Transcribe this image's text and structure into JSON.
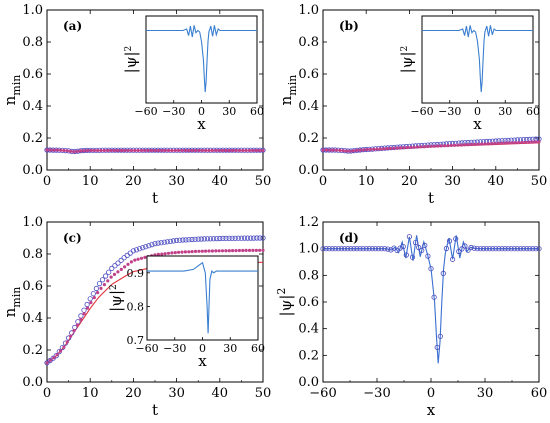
{
  "chart_data": [
    {
      "type": "line",
      "panel_label": "(a)",
      "xlabel": "t",
      "ylabel_main": "n",
      "ylabel_sub": "min",
      "xlim": [
        0,
        50
      ],
      "ylim": [
        0,
        1.0
      ],
      "xticks": [
        "0",
        "10",
        "20",
        "30",
        "40",
        "50"
      ],
      "yticks": [
        "0.0",
        "0.2",
        "0.4",
        "0.6",
        "0.8",
        "1.0"
      ],
      "series": [
        {
          "style": "line",
          "color": "#e0303a",
          "x": [
            0,
            3,
            5,
            6,
            7,
            8,
            10,
            15,
            20,
            25,
            30,
            35,
            40,
            45,
            50
          ],
          "y": [
            0.125,
            0.123,
            0.118,
            0.113,
            0.115,
            0.119,
            0.121,
            0.121,
            0.121,
            0.121,
            0.121,
            0.121,
            0.121,
            0.121,
            0.121
          ]
        },
        {
          "style": "circle",
          "color": "#4a4ac0",
          "x": [
            0,
            3,
            5,
            6,
            7,
            8,
            10,
            15,
            20,
            25,
            30,
            35,
            40,
            45,
            50
          ],
          "y": [
            0.125,
            0.124,
            0.12,
            0.115,
            0.117,
            0.121,
            0.123,
            0.124,
            0.124,
            0.124,
            0.124,
            0.124,
            0.124,
            0.124,
            0.124
          ]
        },
        {
          "style": "dot",
          "color": "#c0408a",
          "x": [
            0,
            3,
            5,
            6,
            7,
            8,
            10,
            15,
            20,
            25,
            30,
            35,
            40,
            45,
            50
          ],
          "y": [
            0.125,
            0.124,
            0.119,
            0.114,
            0.116,
            0.12,
            0.122,
            0.122,
            0.122,
            0.122,
            0.122,
            0.122,
            0.122,
            0.122,
            0.122
          ]
        }
      ],
      "inset": {
        "xlabel": "x",
        "ylabel": "|ψ|",
        "ylabel_sup": "2",
        "xlim": [
          -60,
          60
        ],
        "ylim": [
          0.0,
          1.2
        ],
        "xticks": [
          "−60",
          "−30",
          "0",
          "30",
          "60"
        ],
        "x": [
          -60,
          -20,
          -16,
          -14,
          -12,
          -10,
          -8,
          -6,
          -4,
          -2,
          0,
          2,
          3,
          4,
          5,
          6,
          7,
          8,
          10,
          12,
          14,
          16,
          18,
          20,
          24,
          60
        ],
        "y": [
          1.0,
          1.0,
          1.02,
          0.93,
          1.06,
          0.91,
          1.07,
          0.97,
          1.0,
          0.98,
          0.85,
          0.6,
          0.35,
          0.15,
          0.3,
          0.6,
          0.85,
          0.98,
          1.06,
          0.92,
          1.07,
          0.94,
          1.02,
          1.0,
          1.0,
          1.0
        ]
      }
    },
    {
      "type": "line",
      "panel_label": "(b)",
      "xlabel": "t",
      "ylabel_main": "n",
      "ylabel_sub": "min",
      "xlim": [
        0,
        50
      ],
      "ylim": [
        0,
        1.0
      ],
      "xticks": [
        "0",
        "10",
        "20",
        "30",
        "40",
        "50"
      ],
      "yticks": [
        "0.0",
        "0.2",
        "0.4",
        "0.6",
        "0.8",
        "1.0"
      ],
      "series": [
        {
          "style": "line",
          "color": "#e0303a",
          "x": [
            0,
            3,
            5,
            6,
            7,
            8,
            10,
            15,
            20,
            25,
            30,
            35,
            40,
            45,
            50
          ],
          "y": [
            0.125,
            0.124,
            0.12,
            0.116,
            0.118,
            0.122,
            0.126,
            0.132,
            0.138,
            0.144,
            0.15,
            0.155,
            0.16,
            0.165,
            0.17
          ]
        },
        {
          "style": "circle",
          "color": "#4a4ac0",
          "x": [
            0,
            3,
            5,
            6,
            7,
            8,
            10,
            15,
            20,
            25,
            30,
            35,
            40,
            45,
            50
          ],
          "y": [
            0.125,
            0.125,
            0.121,
            0.118,
            0.12,
            0.124,
            0.128,
            0.138,
            0.148,
            0.157,
            0.166,
            0.174,
            0.181,
            0.188,
            0.194
          ]
        },
        {
          "style": "dot",
          "color": "#c0408a",
          "x": [
            0,
            3,
            5,
            6,
            7,
            8,
            10,
            15,
            20,
            25,
            30,
            35,
            40,
            45,
            50
          ],
          "y": [
            0.125,
            0.124,
            0.12,
            0.117,
            0.119,
            0.123,
            0.127,
            0.134,
            0.141,
            0.148,
            0.154,
            0.16,
            0.166,
            0.171,
            0.176
          ]
        }
      ],
      "inset": {
        "xlabel": "x",
        "ylabel": "|ψ|",
        "ylabel_sup": "2",
        "xlim": [
          -60,
          60
        ],
        "ylim": [
          0.0,
          1.2
        ],
        "xticks": [
          "−60",
          "−30",
          "0",
          "30",
          "60"
        ],
        "x": [
          -60,
          -20,
          -16,
          -14,
          -12,
          -10,
          -8,
          -6,
          -4,
          -2,
          0,
          2,
          3,
          4,
          5,
          6,
          7,
          8,
          10,
          12,
          14,
          16,
          18,
          20,
          24,
          60
        ],
        "y": [
          1.0,
          1.0,
          1.02,
          0.93,
          1.06,
          0.91,
          1.07,
          0.97,
          1.0,
          0.98,
          0.85,
          0.6,
          0.35,
          0.15,
          0.3,
          0.6,
          0.85,
          0.98,
          1.06,
          0.92,
          1.07,
          0.94,
          1.02,
          1.0,
          1.0,
          1.0
        ]
      }
    },
    {
      "type": "line",
      "panel_label": "(c)",
      "xlabel": "t",
      "ylabel_main": "n",
      "ylabel_sub": "min",
      "xlim": [
        0,
        50
      ],
      "ylim": [
        0,
        1.0
      ],
      "xticks": [
        "0",
        "10",
        "20",
        "30",
        "40",
        "50"
      ],
      "yticks": [
        "0.0",
        "0.2",
        "0.4",
        "0.6",
        "0.8",
        "1.0"
      ],
      "series": [
        {
          "style": "line",
          "color": "#e0303a",
          "x": [
            0,
            2,
            4,
            6,
            8,
            10,
            12,
            15,
            18,
            20,
            25,
            30,
            35,
            40,
            45,
            50
          ],
          "y": [
            0.12,
            0.16,
            0.22,
            0.3,
            0.38,
            0.46,
            0.53,
            0.61,
            0.66,
            0.69,
            0.72,
            0.735,
            0.742,
            0.745,
            0.747,
            0.748
          ]
        },
        {
          "style": "circle",
          "color": "#4a4ac0",
          "x": [
            0,
            2,
            4,
            6,
            8,
            10,
            12,
            15,
            18,
            20,
            25,
            30,
            35,
            40,
            45,
            50
          ],
          "y": [
            0.12,
            0.16,
            0.23,
            0.32,
            0.42,
            0.52,
            0.61,
            0.71,
            0.78,
            0.82,
            0.865,
            0.885,
            0.893,
            0.897,
            0.899,
            0.9
          ]
        },
        {
          "style": "dot",
          "color": "#c0408a",
          "x": [
            0,
            2,
            4,
            6,
            8,
            10,
            12,
            15,
            18,
            20,
            25,
            30,
            35,
            40,
            45,
            50
          ],
          "y": [
            0.12,
            0.16,
            0.22,
            0.31,
            0.4,
            0.49,
            0.57,
            0.66,
            0.72,
            0.76,
            0.795,
            0.81,
            0.817,
            0.82,
            0.822,
            0.823
          ]
        }
      ],
      "inset": {
        "xlabel": "x",
        "ylabel": "|ψ|",
        "ylabel_sup": "2",
        "xlim": [
          -60,
          60
        ],
        "ylim": [
          0.7,
          0.95
        ],
        "xticks": [
          "−60",
          "−30",
          "0",
          "30",
          "60"
        ],
        "yticks": [
          "0.7",
          "0.8",
          "0.9"
        ],
        "x": [
          -60,
          -20,
          -10,
          -5,
          0,
          3,
          5,
          6,
          7,
          8,
          10,
          12,
          15,
          20,
          30,
          60
        ],
        "y": [
          0.905,
          0.905,
          0.91,
          0.92,
          0.93,
          0.9,
          0.8,
          0.72,
          0.8,
          0.88,
          0.905,
          0.9,
          0.905,
          0.905,
          0.905,
          0.905
        ]
      }
    },
    {
      "type": "line",
      "panel_label": "(d)",
      "xlabel": "x",
      "ylabel": "|ψ|",
      "ylabel_sup": "2",
      "xlim": [
        -60,
        60
      ],
      "ylim": [
        0,
        1.2
      ],
      "xticks": [
        "−60",
        "−30",
        "0",
        "30",
        "60"
      ],
      "yticks": [
        "0.0",
        "0.2",
        "0.4",
        "0.6",
        "0.8",
        "1.0",
        "1.2"
      ],
      "series": [
        {
          "style": "line",
          "color": "#3a6fd0",
          "x": [
            -60,
            -40,
            -30,
            -25,
            -22,
            -20,
            -18,
            -16,
            -14,
            -12,
            -10,
            -8,
            -6,
            -4,
            -2,
            0,
            2,
            3,
            4,
            5,
            6,
            7,
            8,
            10,
            12,
            14,
            16,
            18,
            20,
            22,
            25,
            30,
            40,
            60
          ],
          "y": [
            1.0,
            1.0,
            1.0,
            1.0,
            0.99,
            1.01,
            0.97,
            1.05,
            0.93,
            1.09,
            0.91,
            1.1,
            0.94,
            1.05,
            0.96,
            0.85,
            0.6,
            0.35,
            0.14,
            0.3,
            0.6,
            0.85,
            0.97,
            1.08,
            0.92,
            1.1,
            0.93,
            1.05,
            0.98,
            1.01,
            1.0,
            1.0,
            1.0,
            1.0
          ]
        },
        {
          "style": "circle",
          "color": "#4a4ac0",
          "x": [
            -60,
            -40,
            -30,
            -25,
            -22,
            -20,
            -18,
            -16,
            -14,
            -12,
            -10,
            -8,
            -6,
            -4,
            -2,
            0,
            2,
            3,
            4,
            5,
            6,
            7,
            8,
            10,
            12,
            14,
            16,
            18,
            20,
            22,
            25,
            30,
            40,
            60
          ],
          "y": [
            1.0,
            1.0,
            1.0,
            1.0,
            0.99,
            1.01,
            0.97,
            1.05,
            0.93,
            1.09,
            0.91,
            1.1,
            0.94,
            1.05,
            0.96,
            0.85,
            0.6,
            0.35,
            0.14,
            0.3,
            0.6,
            0.85,
            0.97,
            1.08,
            0.92,
            1.1,
            0.93,
            1.05,
            0.98,
            1.01,
            1.0,
            1.0,
            1.0,
            1.0
          ]
        }
      ]
    }
  ]
}
